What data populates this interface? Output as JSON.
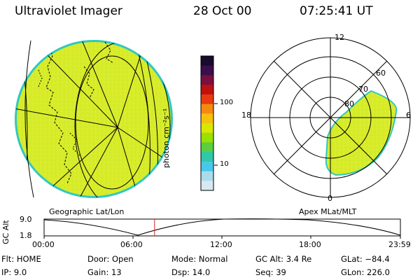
{
  "header": {
    "instrument": "Ultraviolet Imager",
    "date": "28 Oct 00",
    "time": "07:25:41 UT"
  },
  "colorbar": {
    "unit": "photon cm⁻²s⁻¹",
    "ticks": [
      "100",
      "10"
    ],
    "colors": [
      "#1a0a2e",
      "#3a0f4a",
      "#7a1040",
      "#c01010",
      "#e83a10",
      "#f58a10",
      "#f5c010",
      "#d8e800",
      "#9ae000",
      "#58d040",
      "#30c8a8",
      "#48c8e8",
      "#a8dceb",
      "#d8e8f0"
    ]
  },
  "left_panel": {
    "caption": "Geographic Lat/Lon",
    "fill_color": "#d8ec2a",
    "rim_color": "#30c8c0"
  },
  "right_panel": {
    "caption": "Apex MLat/MLT",
    "mlt_labels": {
      "top": "12",
      "left": "18",
      "right": "6",
      "bottom": "0"
    },
    "mlat_labels": [
      "60",
      "70",
      "80"
    ],
    "fill_color": "#d8ec2a"
  },
  "altitude_plot": {
    "ylabel": "GC Alt",
    "ymax_label": "9.0",
    "ymin_label": "1.8",
    "x_ticks": [
      "00:00",
      "06:00",
      "12:00",
      "18:00",
      "23:59"
    ],
    "current_time_fraction": 0.31,
    "marker_color": "#dd2020"
  },
  "footer": {
    "flt": "Flt: HOME",
    "ip": "IP:  9.0",
    "door": "Door: Open",
    "gain": "Gain: 13",
    "mode": "Mode: Normal",
    "dsp": "Dsp:    14.0",
    "gc_alt": "GC Alt: 3.4 Re",
    "seq": "Seq: 39",
    "glat": "GLat: −84.4",
    "glon": "GLon: 226.0"
  }
}
